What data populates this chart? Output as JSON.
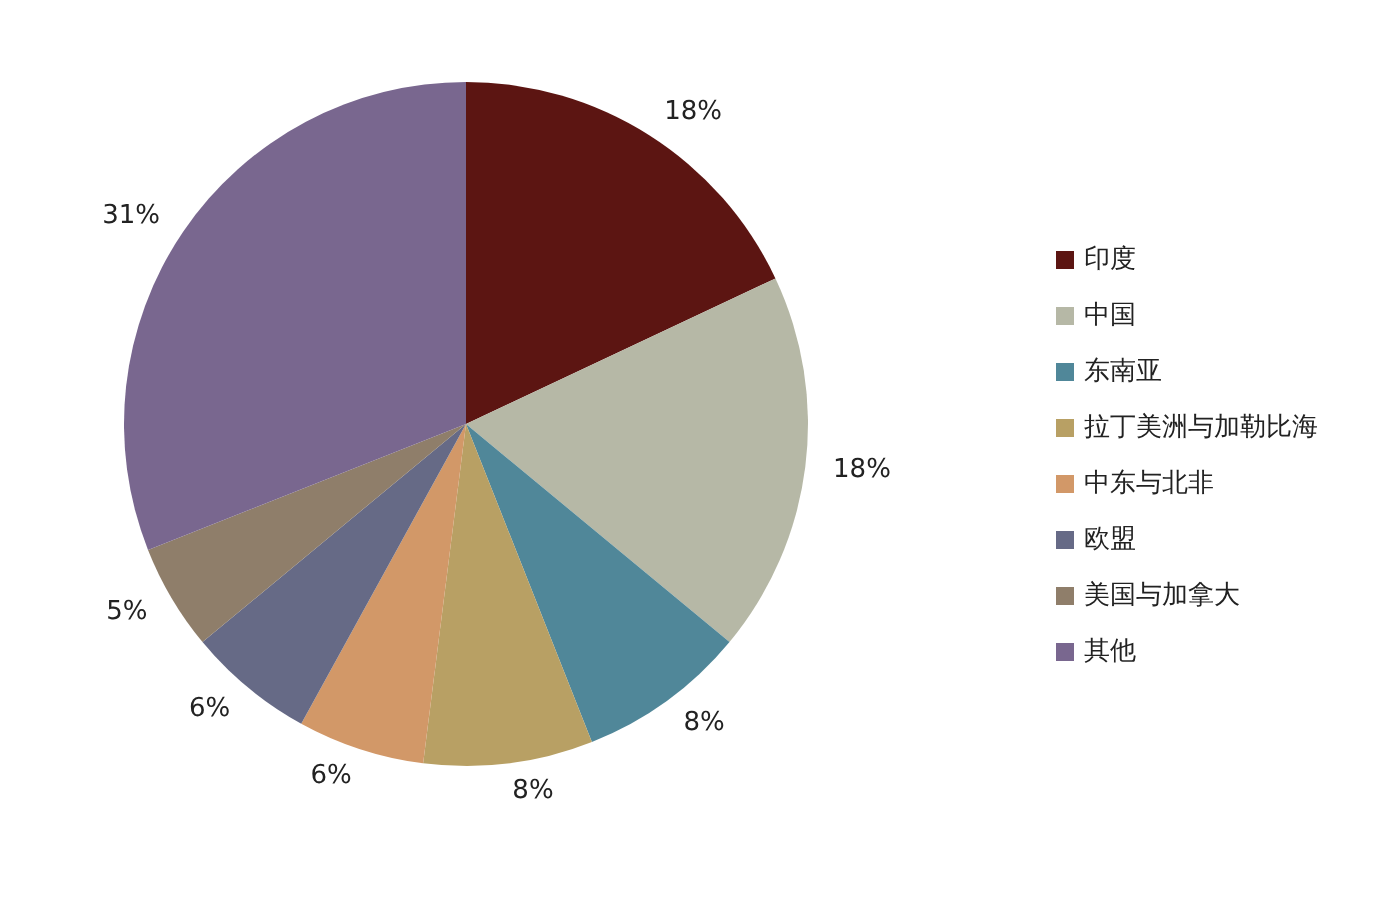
{
  "chart_data": {
    "type": "pie",
    "categories": [
      "印度",
      "中国",
      "东南亚",
      "拉丁美洲与加勒比海",
      "中东与北非",
      "欧盟",
      "美国与加拿大",
      "其他"
    ],
    "values": [
      18,
      18,
      8,
      8,
      6,
      6,
      5,
      31
    ],
    "colors": [
      "#5c1512",
      "#b6b8a6",
      "#508799",
      "#b8a064",
      "#d29868",
      "#666a86",
      "#8f7e6a",
      "#79678f"
    ],
    "value_labels": [
      "18%",
      "18%",
      "8%",
      "8%",
      "6%",
      "6%",
      "5%",
      "31%"
    ],
    "legend": "right"
  }
}
